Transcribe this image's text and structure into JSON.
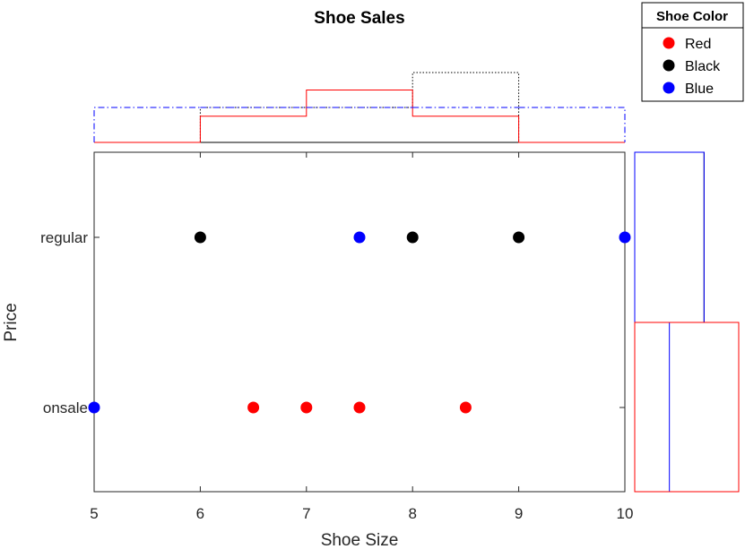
{
  "chart_data": {
    "type": "scatter",
    "title": "Shoe Sales",
    "xlabel": "Shoe Size",
    "ylabel": "Price",
    "xlim": [
      5,
      10
    ],
    "x_ticks": [
      "5",
      "6",
      "7",
      "8",
      "9",
      "10"
    ],
    "y_categories": [
      "onsale",
      "regular"
    ],
    "legend": {
      "title": "Shoe Color",
      "position": "top-right"
    },
    "series": [
      {
        "name": "Red",
        "color": "#ff0000",
        "x": [
          6.5,
          7,
          7.5,
          8.5
        ],
        "y": [
          "onsale",
          "onsale",
          "onsale",
          "onsale"
        ]
      },
      {
        "name": "Black",
        "color": "#000000",
        "x": [
          6,
          8,
          9
        ],
        "y": [
          "regular",
          "regular",
          "regular"
        ]
      },
      {
        "name": "Blue",
        "color": "#0000ff",
        "x": [
          5,
          7.5,
          10
        ],
        "y": [
          "onsale",
          "regular",
          "regular"
        ]
      }
    ],
    "marginal_x_histogram": {
      "bin_edges": [
        5,
        6,
        7,
        8,
        9,
        10
      ],
      "density": {
        "Red": [
          0,
          0.25,
          0.5,
          0.25,
          0
        ],
        "Black": [
          0,
          0.3333,
          0.3333,
          0.6667,
          0
        ],
        "Blue": [
          0.3333,
          0.3333,
          0.3333,
          0.3333,
          0.3333
        ]
      },
      "line_styles": {
        "Red": "solid",
        "Black": "dotted",
        "Blue": "dash-dot"
      }
    },
    "marginal_y_histogram": {
      "categories": [
        "regular",
        "onsale"
      ],
      "density": {
        "Red": [
          0,
          1
        ],
        "Black": [
          0.6667,
          0
        ],
        "Blue": [
          0.6667,
          0.3333
        ]
      }
    }
  }
}
